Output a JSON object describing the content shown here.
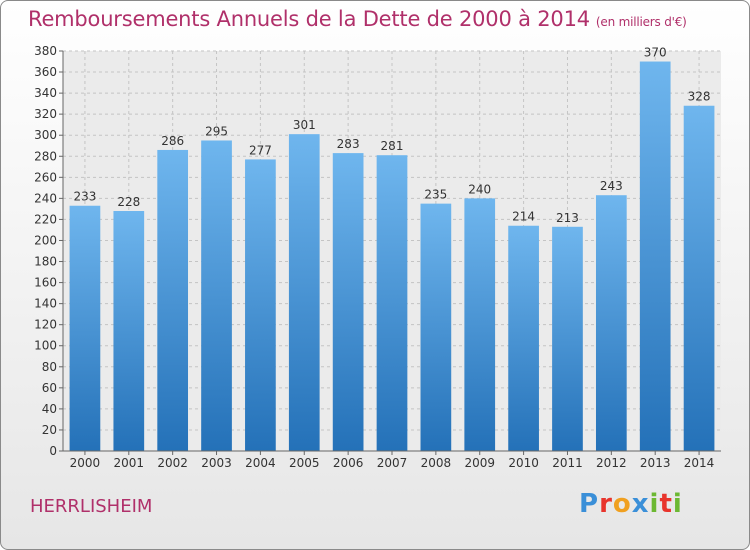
{
  "title": "Remboursements Annuels de la Dette de 2000 à 2014",
  "subtitle": "(en milliers d'€)",
  "place": "HERRLISHEIM",
  "brand": {
    "letters": [
      "P",
      "r",
      "o",
      "x",
      "i",
      "t",
      "i"
    ],
    "colors": [
      "#3a8fd8",
      "#e8342c",
      "#f0a020",
      "#3a8fd8",
      "#6cb832",
      "#e8342c",
      "#6cb832"
    ]
  },
  "colors": {
    "bar_top": "#6fb6ee",
    "bar_bottom": "#2471b8",
    "title": "#b0306a"
  },
  "chart_data": {
    "type": "bar",
    "title": "Remboursements Annuels de la Dette de 2000 à 2014",
    "xlabel": "",
    "ylabel": "",
    "categories": [
      "2000",
      "2001",
      "2002",
      "2003",
      "2004",
      "2005",
      "2006",
      "2007",
      "2008",
      "2009",
      "2010",
      "2011",
      "2012",
      "2013",
      "2014"
    ],
    "values": [
      233,
      228,
      286,
      295,
      277,
      301,
      283,
      281,
      235,
      240,
      214,
      213,
      243,
      370,
      328
    ],
    "ylim": [
      0,
      380
    ],
    "yticks": [
      0,
      20,
      40,
      60,
      80,
      100,
      120,
      140,
      160,
      180,
      200,
      220,
      240,
      260,
      280,
      300,
      320,
      340,
      360,
      380
    ],
    "grid": true,
    "data_labels": true
  }
}
